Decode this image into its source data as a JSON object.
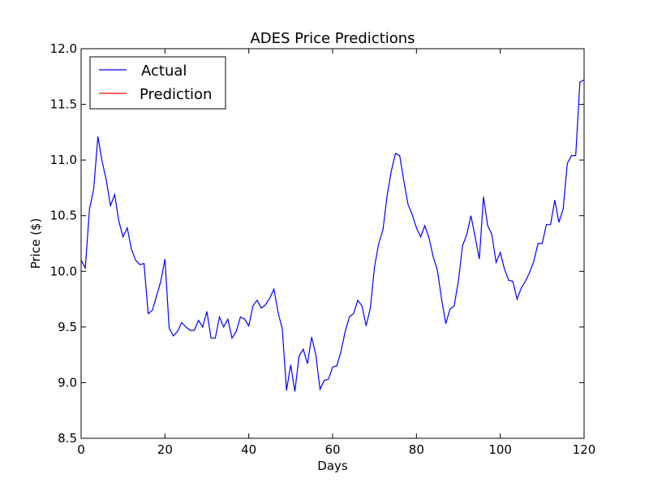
{
  "chart_data": {
    "type": "line",
    "title": "ADES Price Predictions",
    "xlabel": "Days",
    "ylabel": "Price ($)",
    "xlim": [
      0,
      120
    ],
    "ylim": [
      8.5,
      12.0
    ],
    "xticks": [
      0,
      20,
      40,
      60,
      80,
      100,
      120
    ],
    "yticks": [
      8.5,
      9.0,
      9.5,
      10.0,
      10.5,
      11.0,
      11.5,
      12.0
    ],
    "grid": false,
    "legend_position": "top-left",
    "series": [
      {
        "name": "Actual",
        "color": "#0000ff",
        "x": [
          0,
          1,
          2,
          3,
          4,
          5,
          6,
          7,
          8,
          9,
          10,
          11,
          12,
          13,
          14,
          15,
          16,
          17,
          18,
          19,
          20,
          21,
          22,
          23,
          24,
          25,
          26,
          27,
          28,
          29,
          30,
          31,
          32,
          33,
          34,
          35,
          36,
          37,
          38,
          39,
          40,
          41,
          42,
          43,
          44,
          45,
          46,
          47,
          48,
          49,
          50,
          51,
          52,
          53,
          54,
          55,
          56,
          57,
          58,
          59,
          60,
          61,
          62,
          63,
          64,
          65,
          66,
          67,
          68,
          69,
          70,
          71,
          72,
          73,
          74,
          75,
          76,
          77,
          78,
          79,
          80,
          81,
          82,
          83,
          84,
          85,
          86,
          87,
          88,
          89,
          90,
          91,
          92,
          93,
          94,
          95,
          96,
          97,
          98,
          99,
          100,
          101,
          102,
          103,
          104,
          105,
          106,
          107,
          108,
          109,
          110,
          111,
          112,
          113,
          114,
          115,
          116,
          117,
          118,
          119,
          120
        ],
        "y": [
          10.1,
          10.03,
          10.56,
          10.74,
          11.21,
          10.99,
          10.82,
          10.59,
          10.69,
          10.45,
          10.31,
          10.39,
          10.2,
          10.1,
          10.06,
          10.07,
          9.62,
          9.65,
          9.78,
          9.91,
          10.11,
          9.49,
          9.42,
          9.46,
          9.54,
          9.5,
          9.47,
          9.47,
          9.56,
          9.5,
          9.64,
          9.4,
          9.4,
          9.59,
          9.5,
          9.57,
          9.4,
          9.46,
          9.59,
          9.57,
          9.51,
          9.69,
          9.74,
          9.67,
          9.7,
          9.76,
          9.84,
          9.63,
          9.48,
          8.93,
          9.16,
          8.92,
          9.24,
          9.3,
          9.17,
          9.41,
          9.25,
          8.94,
          9.02,
          9.03,
          9.14,
          9.15,
          9.28,
          9.46,
          9.59,
          9.62,
          9.74,
          9.69,
          9.51,
          9.67,
          10.04,
          10.25,
          10.37,
          10.68,
          10.9,
          11.06,
          11.04,
          10.81,
          10.6,
          10.51,
          10.39,
          10.31,
          10.41,
          10.3,
          10.13,
          10.01,
          9.75,
          9.53,
          9.66,
          9.69,
          9.91,
          10.23,
          10.33,
          10.5,
          10.31,
          10.11,
          10.67,
          10.41,
          10.33,
          10.08,
          10.17,
          10.02,
          9.92,
          9.91,
          9.75,
          9.85,
          9.91,
          9.99,
          10.09,
          10.25,
          10.25,
          10.42,
          10.42,
          10.64,
          10.44,
          10.56,
          10.97,
          11.04,
          11.04,
          11.7,
          11.72
        ]
      },
      {
        "name": "Prediction",
        "color": "#ff0000",
        "x": [],
        "y": []
      }
    ]
  }
}
